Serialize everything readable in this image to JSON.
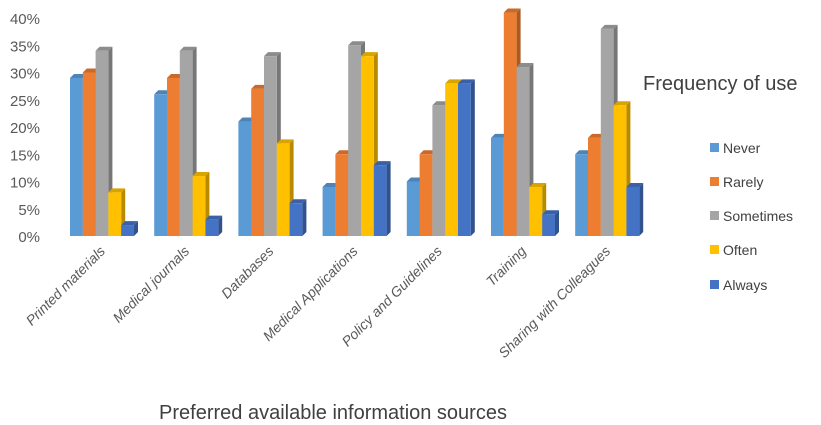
{
  "chart_data": {
    "type": "bar",
    "style": "3d clustered column",
    "title": "",
    "xlabel": "Preferred available information sources",
    "ylabel": "",
    "ylim": [
      0,
      40
    ],
    "yticks": [
      "0%",
      "5%",
      "10%",
      "15%",
      "20%",
      "25%",
      "30%",
      "35%",
      "40%"
    ],
    "grid": false,
    "legend": {
      "title": "Frequency of use",
      "placement": "right"
    },
    "categories": [
      "Printed materials",
      "Medical journals",
      "Databases",
      "Medical Applications",
      "Policy and Guidelines",
      "Training",
      "Sharing with Colleagues"
    ],
    "series": [
      {
        "name": "Never",
        "color": "#5B9BD5",
        "values": [
          29,
          26,
          21,
          9,
          10,
          18,
          15
        ]
      },
      {
        "name": "Rarely",
        "color": "#ED7D31",
        "values": [
          30,
          29,
          27,
          15,
          15,
          41,
          18
        ]
      },
      {
        "name": "Sometimes",
        "color": "#A5A5A5",
        "values": [
          34,
          34,
          33,
          35,
          24,
          31,
          38
        ]
      },
      {
        "name": "Often",
        "color": "#FFC000",
        "values": [
          8,
          11,
          17,
          33,
          28,
          9,
          24
        ]
      },
      {
        "name": "Always",
        "color": "#4472C4",
        "values": [
          2,
          3,
          6,
          13,
          28,
          4,
          9
        ]
      }
    ]
  }
}
